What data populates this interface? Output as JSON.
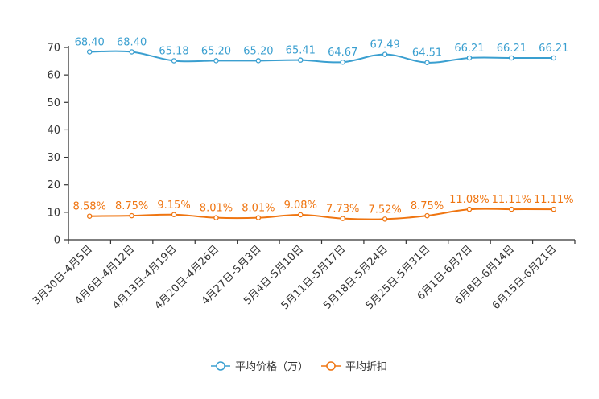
{
  "chart_data": {
    "type": "line",
    "categories": [
      "3月30日-4月5日",
      "4月6日-4月12日",
      "4月13日-4月19日",
      "4月20日-4月26日",
      "4月27日-5月3日",
      "5月4日-5月10日",
      "5月11日-5月17日",
      "5月18日-5月24日",
      "5月25日-5月31日",
      "6月1日-6月7日",
      "6月8日-6月14日",
      "6月15日-6月21日"
    ],
    "series": [
      {
        "name": "平均价格（万）",
        "values": [
          68.4,
          68.4,
          65.18,
          65.2,
          65.2,
          65.41,
          64.67,
          67.49,
          64.51,
          66.21,
          66.21,
          66.21
        ],
        "labels": [
          "68.40",
          "68.40",
          "65.18",
          "65.20",
          "65.20",
          "65.41",
          "64.67",
          "67.49",
          "64.51",
          "66.21",
          "66.21",
          "66.21"
        ],
        "color": "#3a9fd0"
      },
      {
        "name": "平均折扣",
        "values": [
          8.58,
          8.75,
          9.15,
          8.01,
          8.01,
          9.08,
          7.73,
          7.52,
          8.75,
          11.08,
          11.11,
          11.11
        ],
        "labels": [
          "8.58%",
          "8.75%",
          "9.15%",
          "8.01%",
          "8.01%",
          "9.08%",
          "7.73%",
          "7.52%",
          "8.75%",
          "11.08%",
          "11.11%",
          "11.11%"
        ],
        "color": "#ef7511"
      }
    ],
    "ylim": [
      0,
      70
    ],
    "yticks": [
      "0",
      "10",
      "20",
      "30",
      "40",
      "50",
      "60",
      "70"
    ],
    "title": "",
    "xlabel": "",
    "ylabel": "",
    "grid": false,
    "legend_position": "bottom-center"
  }
}
